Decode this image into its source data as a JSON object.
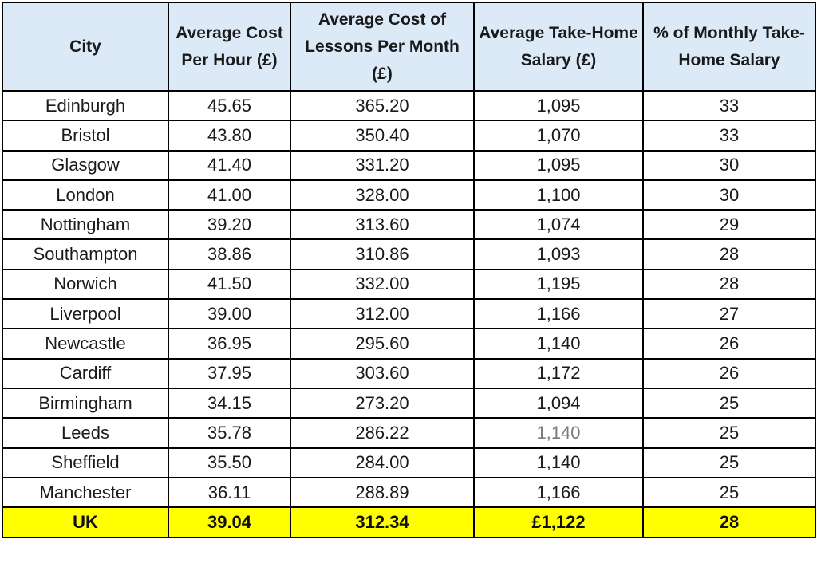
{
  "headers": {
    "city": "City",
    "cost_per_hour": "Average Cost Per Hour (£)",
    "cost_per_month": "Average Cost of Lessons Per Month (£)",
    "take_home_salary": "Average Take-Home Salary (£)",
    "pct_salary": "% of Monthly Take-Home Salary"
  },
  "rows": [
    {
      "city": "Edinburgh",
      "cost_per_hour": "45.65",
      "cost_per_month": "365.20",
      "take_home_salary": "1,095",
      "pct_salary": "33"
    },
    {
      "city": "Bristol",
      "cost_per_hour": "43.80",
      "cost_per_month": "350.40",
      "take_home_salary": "1,070",
      "pct_salary": "33"
    },
    {
      "city": "Glasgow",
      "cost_per_hour": "41.40",
      "cost_per_month": "331.20",
      "take_home_salary": "1,095",
      "pct_salary": "30"
    },
    {
      "city": "London",
      "cost_per_hour": "41.00",
      "cost_per_month": "328.00",
      "take_home_salary": "1,100",
      "pct_salary": "30"
    },
    {
      "city": "Nottingham",
      "cost_per_hour": "39.20",
      "cost_per_month": "313.60",
      "take_home_salary": "1,074",
      "pct_salary": "29"
    },
    {
      "city": "Southampton",
      "cost_per_hour": "38.86",
      "cost_per_month": "310.86",
      "take_home_salary": "1,093",
      "pct_salary": "28"
    },
    {
      "city": "Norwich",
      "cost_per_hour": "41.50",
      "cost_per_month": "332.00",
      "take_home_salary": "1,195",
      "pct_salary": "28"
    },
    {
      "city": "Liverpool",
      "cost_per_hour": "39.00",
      "cost_per_month": "312.00",
      "take_home_salary": "1,166",
      "pct_salary": "27"
    },
    {
      "city": "Newcastle",
      "cost_per_hour": "36.95",
      "cost_per_month": "295.60",
      "take_home_salary": "1,140",
      "pct_salary": "26"
    },
    {
      "city": "Cardiff",
      "cost_per_hour": "37.95",
      "cost_per_month": "303.60",
      "take_home_salary": "1,172",
      "pct_salary": "26"
    },
    {
      "city": "Birmingham",
      "cost_per_hour": "34.15",
      "cost_per_month": "273.20",
      "take_home_salary": "1,094",
      "pct_salary": "25"
    },
    {
      "city": "Leeds",
      "cost_per_hour": "35.78",
      "cost_per_month": "286.22",
      "take_home_salary": "1,140",
      "pct_salary": "25",
      "salary_muted": true
    },
    {
      "city": "Sheffield",
      "cost_per_hour": "35.50",
      "cost_per_month": "284.00",
      "take_home_salary": "1,140",
      "pct_salary": "25"
    },
    {
      "city": "Manchester",
      "cost_per_hour": "36.11",
      "cost_per_month": "288.89",
      "take_home_salary": "1,166",
      "pct_salary": "25"
    }
  ],
  "total": {
    "city": "UK",
    "cost_per_hour": "39.04",
    "cost_per_month": "312.34",
    "take_home_salary": "£1,122",
    "pct_salary": "28"
  },
  "colors": {
    "header_bg": "#dce9f7",
    "total_bg": "#ffff00",
    "muted_text": "#7a7a7a"
  }
}
